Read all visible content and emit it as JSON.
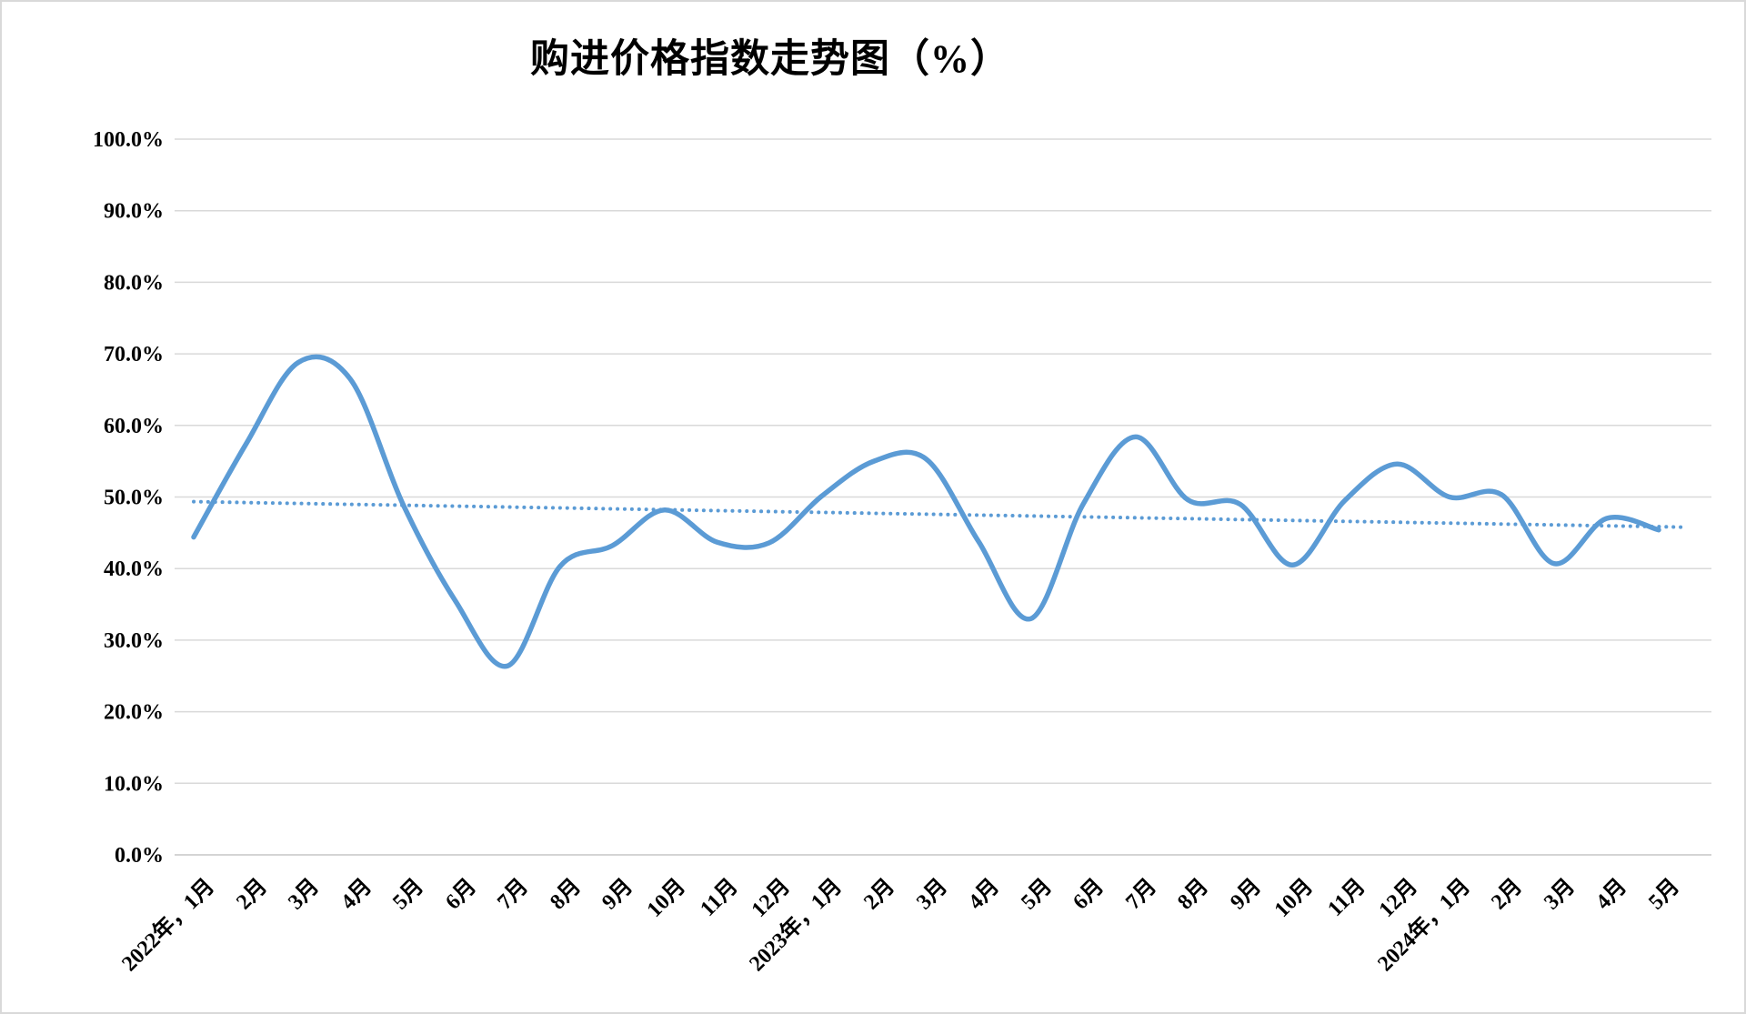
{
  "title": "购进价格指数走势图（%）",
  "colors": {
    "line": "#5B9BD5",
    "trendline": "#5B9BD5",
    "gridline": "#D9D9D9",
    "axis_line": "#C6C6C6",
    "text": "#000000"
  },
  "y_axis": {
    "tick_labels": [
      "100.0%",
      "90.0%",
      "80.0%",
      "70.0%",
      "60.0%",
      "50.0%",
      "40.0%",
      "30.0%",
      "20.0%",
      "10.0%",
      "0.0%"
    ],
    "max": 100,
    "min": 0,
    "step": 10
  },
  "chart_data": {
    "type": "line",
    "title": "购进价格指数走势图（%）",
    "smooth": true,
    "grid": "horizontal",
    "legend": "none",
    "ylim": [
      0,
      100
    ],
    "y_tick_step": 10,
    "xlabel": "",
    "ylabel": "",
    "categories": [
      "2022年，1月",
      "2月",
      "3月",
      "4月",
      "5月",
      "6月",
      "7月",
      "8月",
      "9月",
      "10月",
      "11月",
      "12月",
      "2023年，1月",
      "2月",
      "3月",
      "4月",
      "5月",
      "6月",
      "7月",
      "8月",
      "9月",
      "10月",
      "11月",
      "12月",
      "2024年，1月",
      "2月",
      "3月",
      "4月",
      "5月"
    ],
    "series": [
      {
        "name": "购进价格指数",
        "values": [
          44.4,
          57.4,
          68.8,
          66.4,
          49.0,
          35.5,
          26.4,
          40.3,
          43.2,
          48.2,
          43.7,
          43.6,
          50.1,
          55.0,
          55.3,
          43.8,
          33.0,
          49.0,
          58.4,
          49.6,
          49.0,
          40.5,
          49.5,
          54.6,
          50.0,
          50.3,
          40.7,
          47.0,
          45.4
        ]
      }
    ],
    "trendline": {
      "type": "linear",
      "style": "dotted",
      "start_value": 49.35,
      "end_value": 45.85
    }
  }
}
